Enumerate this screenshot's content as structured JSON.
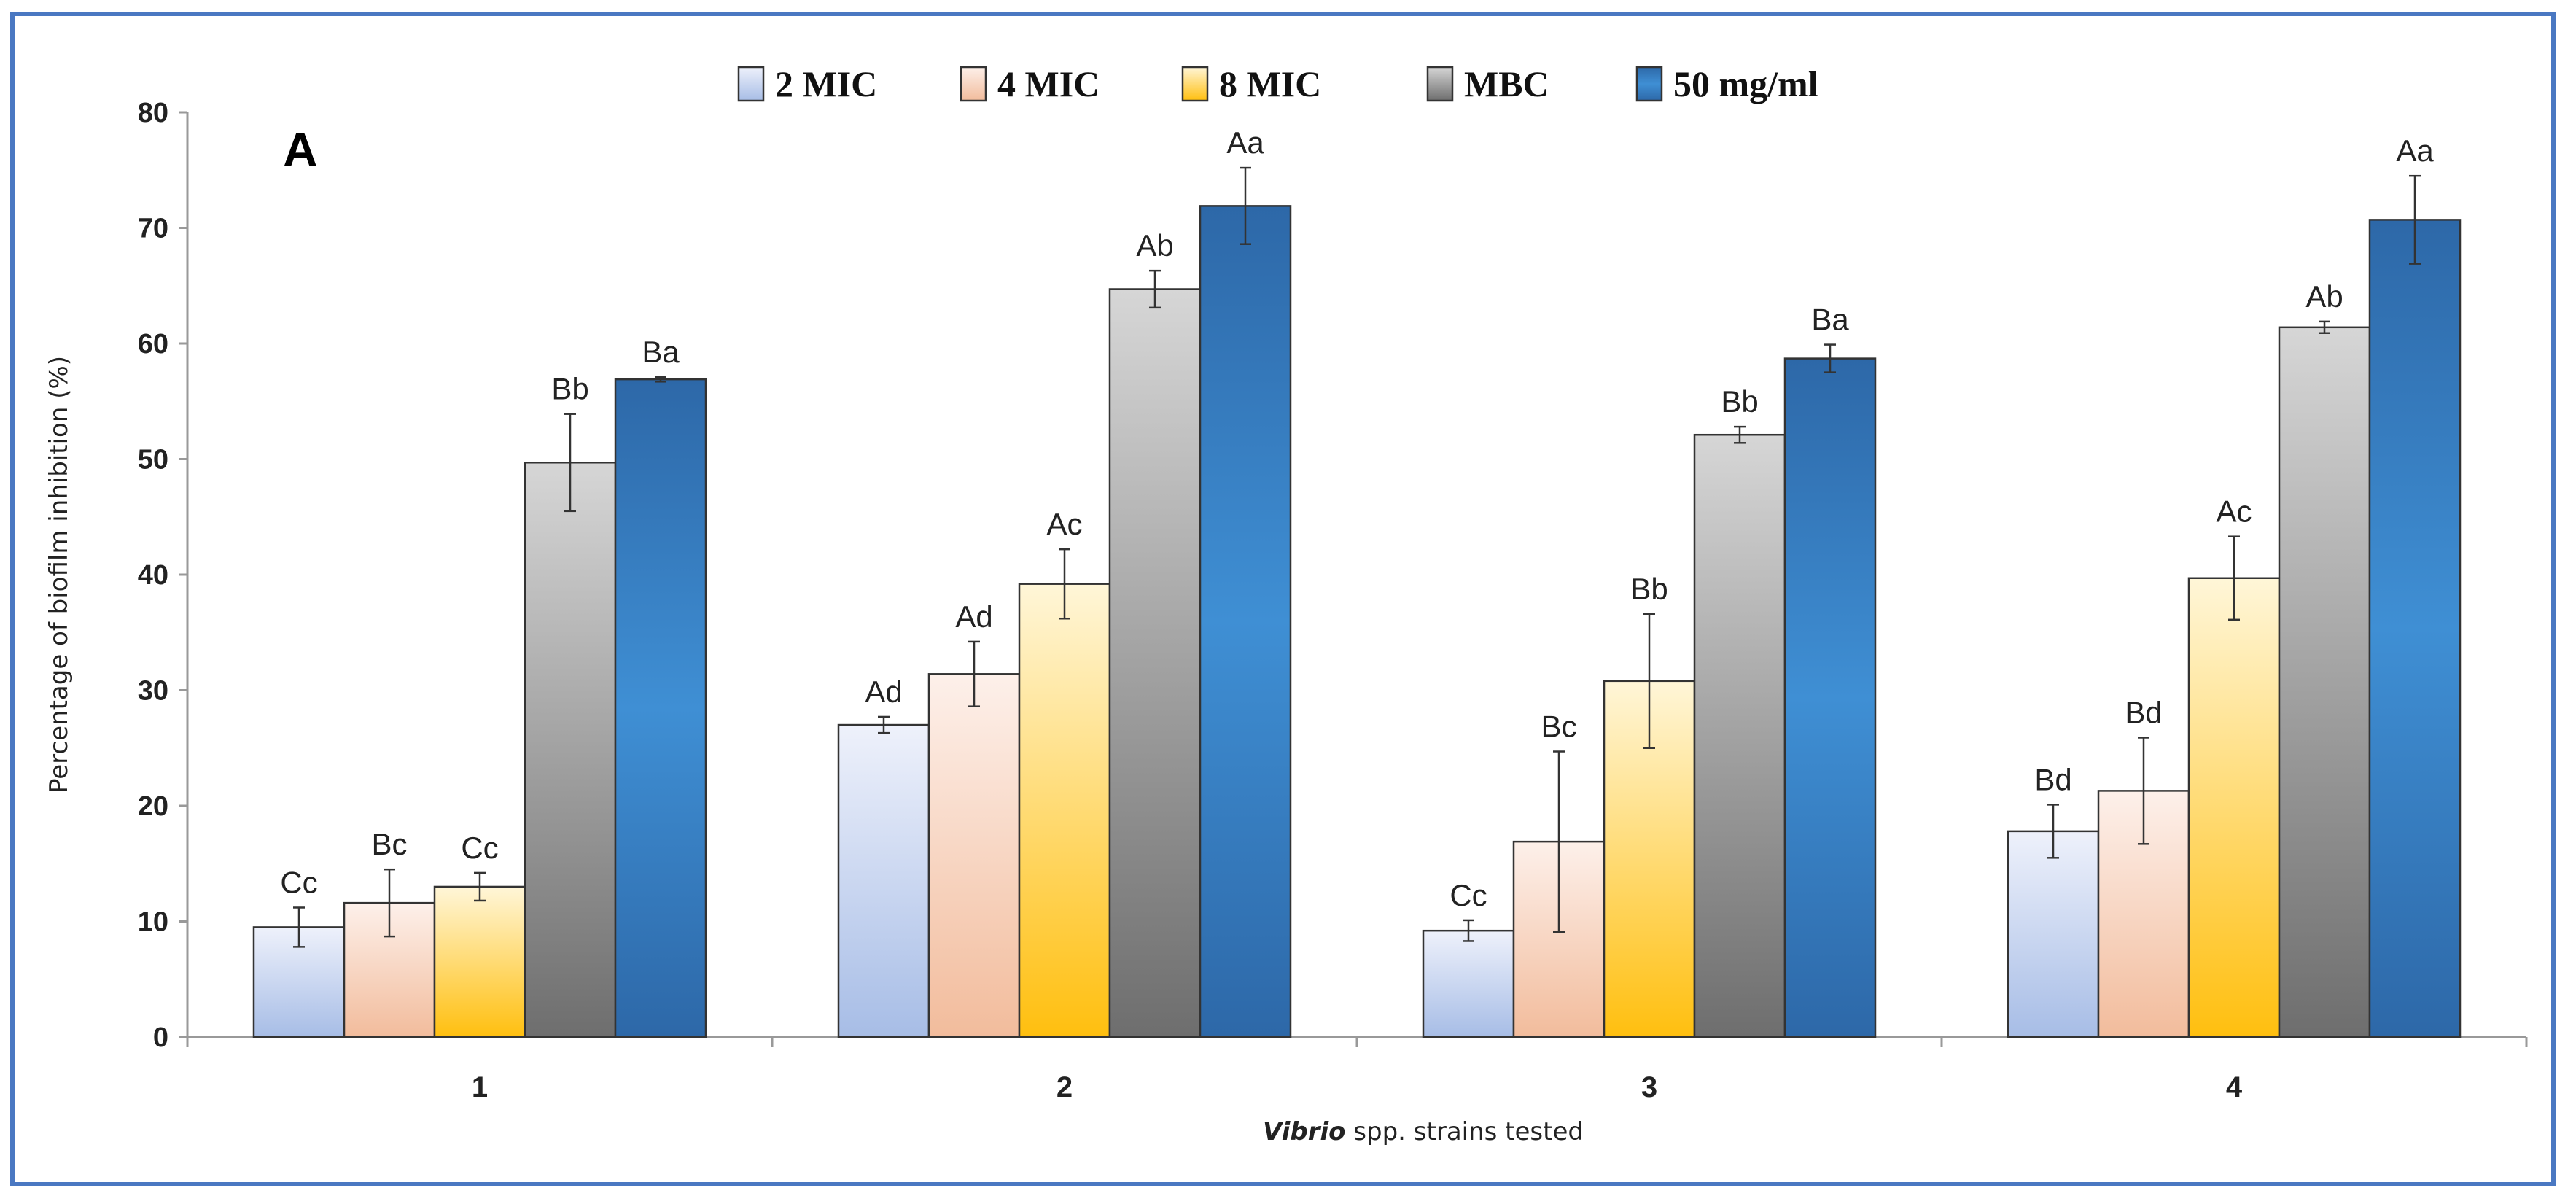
{
  "chart_data": {
    "type": "bar",
    "panel_label": "A",
    "title": "",
    "xlabel": {
      "italic": "Vibrio",
      "rest": " spp. strains tested"
    },
    "ylabel": "Percentage of biofilm inhibition (%)",
    "ylim": [
      0,
      80
    ],
    "yticks": [
      0,
      10,
      20,
      30,
      40,
      50,
      60,
      70,
      80
    ],
    "categories": [
      "1",
      "2",
      "3",
      "4"
    ],
    "legend_position": "top-center",
    "series": [
      {
        "name": "2 MIC",
        "color_top": "#eef1fb",
        "color_bottom": "#a7bde6",
        "values": [
          9.5,
          27,
          9.2,
          17.8
        ],
        "errors": [
          1.7,
          0.7,
          0.9,
          2.3
        ],
        "labels": [
          "Cc",
          "Ad",
          "Cc",
          "Bd"
        ]
      },
      {
        "name": "4 MIC",
        "color_top": "#fdf0ea",
        "color_bottom": "#f2bc9c",
        "values": [
          11.6,
          31.4,
          16.9,
          21.3
        ],
        "errors": [
          2.9,
          2.8,
          7.8,
          4.6
        ],
        "labels": [
          "Bc",
          "Ad",
          "Bc",
          "Bd"
        ]
      },
      {
        "name": "8 MIC",
        "color_top": "#fff6d8",
        "color_bottom": "#ffbf0f",
        "values": [
          13,
          39.2,
          30.8,
          39.7
        ],
        "errors": [
          1.2,
          3,
          5.8,
          3.6
        ],
        "labels": [
          "Cc",
          "Ac",
          "Bb",
          "Ac"
        ]
      },
      {
        "name": "MBC",
        "color_top": "#d6d6d6",
        "color_bottom": "#6e6e6e",
        "values": [
          49.7,
          64.7,
          52.1,
          61.4
        ],
        "errors": [
          4.2,
          1.6,
          0.7,
          0.5
        ],
        "labels": [
          "Bb",
          "Ab",
          "Bb",
          "Ab"
        ]
      },
      {
        "name": "50 mg/ml",
        "color_top": "#2d68a8",
        "color_mid": "#3f8fd4",
        "color_bottom": "#2d68a8",
        "values": [
          56.9,
          71.9,
          58.7,
          70.7
        ],
        "errors": [
          0.2,
          3.3,
          1.2,
          3.8
        ],
        "labels": [
          "Ba",
          "Aa",
          "Ba",
          "Aa"
        ]
      }
    ]
  }
}
